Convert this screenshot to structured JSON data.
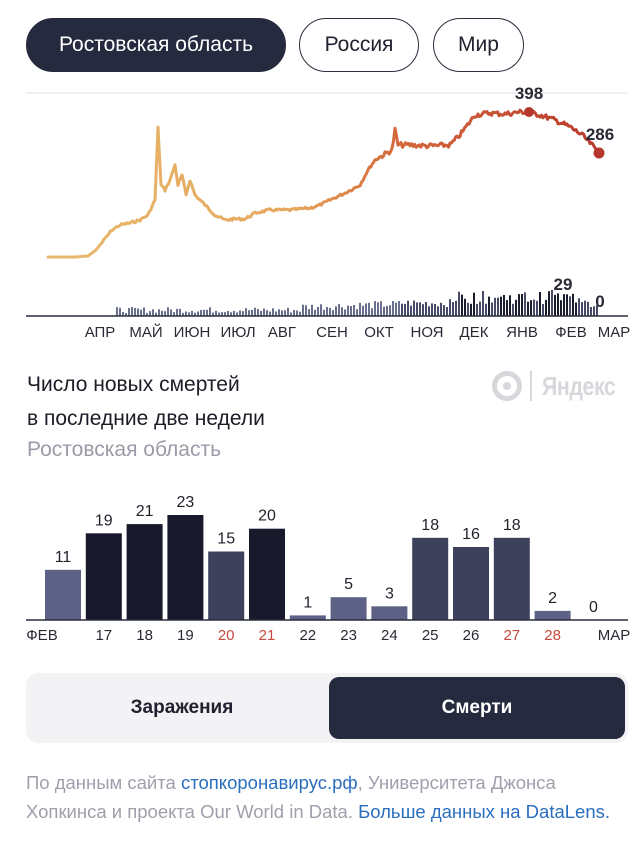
{
  "tabs": [
    "Ростовская область",
    "Россия",
    "Мир"
  ],
  "active_tab": 0,
  "overview": {
    "months": [
      "АПР",
      "МАЙ",
      "ИЮН",
      "ИЮЛ",
      "АВГ",
      "СЕН",
      "ОКТ",
      "НОЯ",
      "ДЕК",
      "ЯНВ",
      "ФЕВ",
      "МАР"
    ],
    "line_peak_label": "398",
    "line_last_label": "286",
    "bars_peak_label": "29",
    "bars_last_label": "0",
    "line_color_start": "#e7b86d",
    "line_color_end": "#b93a2d"
  },
  "title_line1": "Число новых смертей",
  "title_line2": "в последние две недели",
  "subtitle": "Ростовская область",
  "brand": "Яндекс",
  "chart_data": {
    "type": "bar",
    "title": "Число новых смертей в последние две недели",
    "subtitle": "Ростовская область",
    "categories": [
      "ФЕВ",
      "17",
      "18",
      "19",
      "20",
      "21",
      "22",
      "23",
      "24",
      "25",
      "26",
      "27",
      "28",
      "МАР"
    ],
    "values": [
      11,
      19,
      21,
      23,
      15,
      20,
      1,
      5,
      3,
      18,
      16,
      18,
      2,
      0
    ],
    "weekend_categories": [
      "20",
      "21",
      "27",
      "28"
    ],
    "colors": {
      "dark": "#181a2c",
      "medium": "#3d415c",
      "light": "#5d6185",
      "weekend_label": "#c84a3e"
    },
    "ylim": [
      0,
      23
    ],
    "grid": false
  },
  "metric_buttons": [
    "Заражения",
    "Смерти"
  ],
  "active_metric": 1,
  "footer": {
    "prefix": "По данным сайта ",
    "link1": "стопкоронавирус.рф",
    "middle": ", Университета Джонса Хопкинса и проекта Our World in Data. ",
    "link2": "Больше данных на DataLens."
  }
}
